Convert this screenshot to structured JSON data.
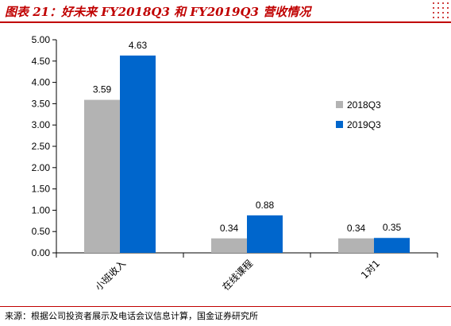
{
  "header": {
    "title": "图表 21：好未来 FY2018Q3 和 FY2019Q3 营收情况"
  },
  "footer": {
    "source": "来源：根据公司投资者展示及电话会议信息计算，国金证券研究所"
  },
  "colors": {
    "accent": "#c00000",
    "series_2018": "#b3b3b3",
    "series_2019": "#0066cc"
  },
  "chart_data": {
    "type": "bar",
    "categories": [
      "小班收入",
      "在线课程",
      "1对1"
    ],
    "series": [
      {
        "name": "2018Q3",
        "values": [
          3.59,
          0.34,
          0.34
        ]
      },
      {
        "name": "2019Q3",
        "values": [
          4.63,
          0.88,
          0.35
        ]
      }
    ],
    "ylim": [
      0,
      5
    ],
    "yticks": [
      "0.00",
      "0.50",
      "1.00",
      "1.50",
      "2.00",
      "2.50",
      "3.00",
      "3.50",
      "4.00",
      "4.50",
      "5.00"
    ],
    "data_labels": [
      [
        "3.59",
        "0.34",
        "0.34"
      ],
      [
        "4.63",
        "0.88",
        "0.35"
      ]
    ],
    "legend_position": "right",
    "grid": false,
    "xlabel": "",
    "ylabel": ""
  }
}
